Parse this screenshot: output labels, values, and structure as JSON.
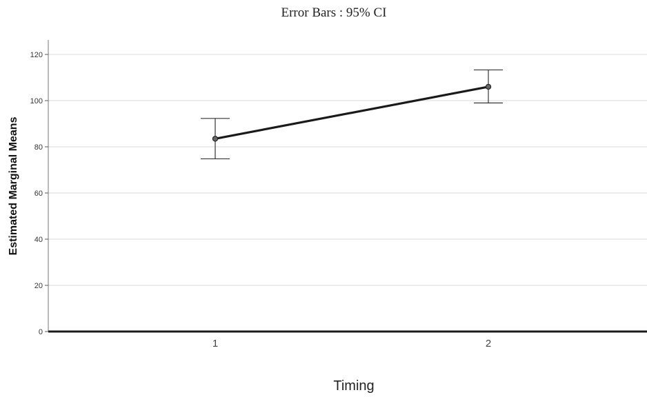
{
  "caption": "Error Bars : 95% CI",
  "chart_data": {
    "type": "line",
    "xlabel": "Timing",
    "ylabel": "Estimated Marginal Means",
    "categories": [
      "1",
      "2"
    ],
    "series": [
      {
        "values": [
          83.5,
          106.0
        ],
        "ci_lower": [
          74.8,
          99.0
        ],
        "ci_upper": [
          92.3,
          113.3
        ]
      }
    ],
    "ylim": [
      0,
      120
    ],
    "yticks": [
      0,
      20,
      40,
      60,
      80,
      100,
      120
    ],
    "grid": true,
    "legend": "none"
  }
}
